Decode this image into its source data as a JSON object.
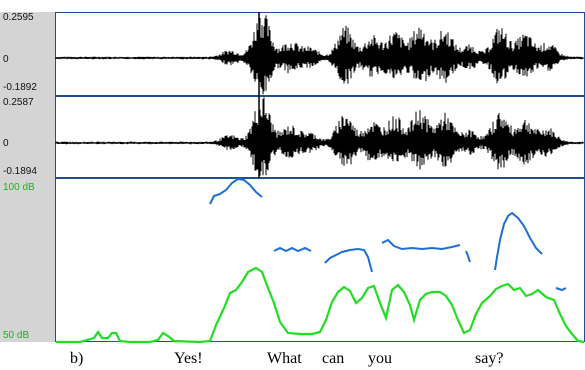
{
  "waveform_top": {
    "max_label": "0.2595",
    "zero_label": "0",
    "min_label": "-0.1892"
  },
  "waveform_bottom": {
    "max_label": "0.2587",
    "zero_label": "0",
    "min_label": "-0.1894"
  },
  "pitch_panel": {
    "top_label": "100 dB",
    "bottom_label": "50 dB"
  },
  "caption": {
    "label": "b)",
    "words": [
      "Yes!",
      "What",
      "can",
      "you",
      "say?"
    ]
  },
  "colors": {
    "waveform": "#000000",
    "pitch": "#1f6fd1",
    "intensity": "#22dd22",
    "axis_label_intensity": "#1db31d",
    "panel_border": "#1f4f8f",
    "axis_background": "#d4d4d4"
  }
}
